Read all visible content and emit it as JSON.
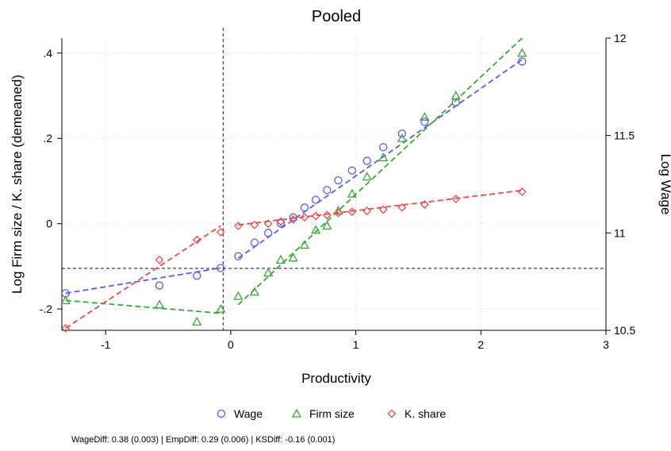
{
  "chart_data": {
    "type": "scatter",
    "title": "Pooled",
    "xlabel": "Productivity",
    "ylabel_left": "Log Firm size / K. share (demeaned)",
    "ylabel_right": "Log Wage",
    "xlim": [
      -1.35,
      3
    ],
    "ylim_left": [
      -0.25,
      0.435
    ],
    "ylim_right": [
      10.5,
      12
    ],
    "x_ticks": [
      -1,
      0,
      1,
      2,
      3
    ],
    "x_tick_labels": [
      "-1",
      "0",
      "1",
      "2",
      "3"
    ],
    "y_left_ticks": [
      -0.2,
      0,
      0.2,
      0.4
    ],
    "y_left_tick_labels": [
      "-.2",
      "0",
      ".2",
      ".4"
    ],
    "y_right_ticks": [
      10.5,
      11,
      11.5,
      12
    ],
    "y_right_tick_labels": [
      "10.5",
      "11",
      "11.5",
      "12"
    ],
    "grid": true,
    "vline_x": -0.06,
    "hline_y_left": -0.105,
    "legend_position": "bottom",
    "note": "WageDiff: 0.38 (0.003) | EmpDiff: 0.29 (0.006) | KSDiff: -0.16 (0.001)",
    "series": [
      {
        "name": "Wage",
        "axis": "right",
        "marker": "circle",
        "color": "#5b5bf0",
        "x": [
          -1.32,
          -0.57,
          -0.27,
          -0.08,
          0.06,
          0.19,
          0.3,
          0.4,
          0.5,
          0.59,
          0.68,
          0.77,
          0.86,
          0.97,
          1.09,
          1.22,
          1.37,
          1.55,
          1.8,
          2.33
        ],
        "y": [
          10.69,
          10.73,
          10.78,
          10.82,
          10.88,
          10.95,
          11.0,
          11.05,
          11.08,
          11.13,
          11.17,
          11.22,
          11.27,
          11.32,
          11.37,
          11.44,
          11.51,
          11.57,
          11.67,
          11.88
        ],
        "fit": [
          {
            "x": [
              -1.32,
              -0.08
            ],
            "y": [
              10.69,
              10.82
            ]
          },
          {
            "x": [
              0.06,
              2.33
            ],
            "y": [
              10.87,
              11.89
            ]
          }
        ]
      },
      {
        "name": "Firm size",
        "axis": "left",
        "marker": "triangle",
        "color": "#3aa63a",
        "x": [
          -1.32,
          -0.57,
          -0.27,
          -0.08,
          0.06,
          0.19,
          0.3,
          0.4,
          0.5,
          0.59,
          0.68,
          0.77,
          0.86,
          0.97,
          1.09,
          1.22,
          1.37,
          1.55,
          1.8,
          2.33
        ],
        "y": [
          -0.18,
          -0.19,
          -0.23,
          -0.2,
          -0.17,
          -0.16,
          -0.115,
          -0.085,
          -0.08,
          -0.05,
          -0.015,
          -0.005,
          0.03,
          0.07,
          0.11,
          0.155,
          0.2,
          0.25,
          0.3,
          0.4
        ],
        "fit": [
          {
            "x": [
              -1.32,
              -0.08
            ],
            "y": [
              -0.18,
              -0.21
            ]
          },
          {
            "x": [
              0.06,
              2.33
            ],
            "y": [
              -0.19,
              0.435
            ]
          }
        ]
      },
      {
        "name": "K. share",
        "axis": "left",
        "marker": "diamond",
        "color": "#e94b4b",
        "x": [
          -1.32,
          -0.57,
          -0.27,
          -0.08,
          0.06,
          0.19,
          0.3,
          0.4,
          0.5,
          0.59,
          0.68,
          0.77,
          0.86,
          0.97,
          1.09,
          1.22,
          1.37,
          1.55,
          1.8,
          2.33
        ],
        "y": [
          -0.245,
          -0.085,
          -0.038,
          -0.02,
          -0.005,
          -0.003,
          0.0,
          0.005,
          0.01,
          0.015,
          0.018,
          0.02,
          0.025,
          0.028,
          0.03,
          0.033,
          0.038,
          0.045,
          0.058,
          0.075
        ],
        "fit": [
          {
            "x": [
              -1.32,
              -0.08
            ],
            "y": [
              -0.245,
              -0.005
            ]
          },
          {
            "x": [
              0.06,
              2.33
            ],
            "y": [
              -0.003,
              0.078
            ]
          }
        ]
      }
    ]
  }
}
